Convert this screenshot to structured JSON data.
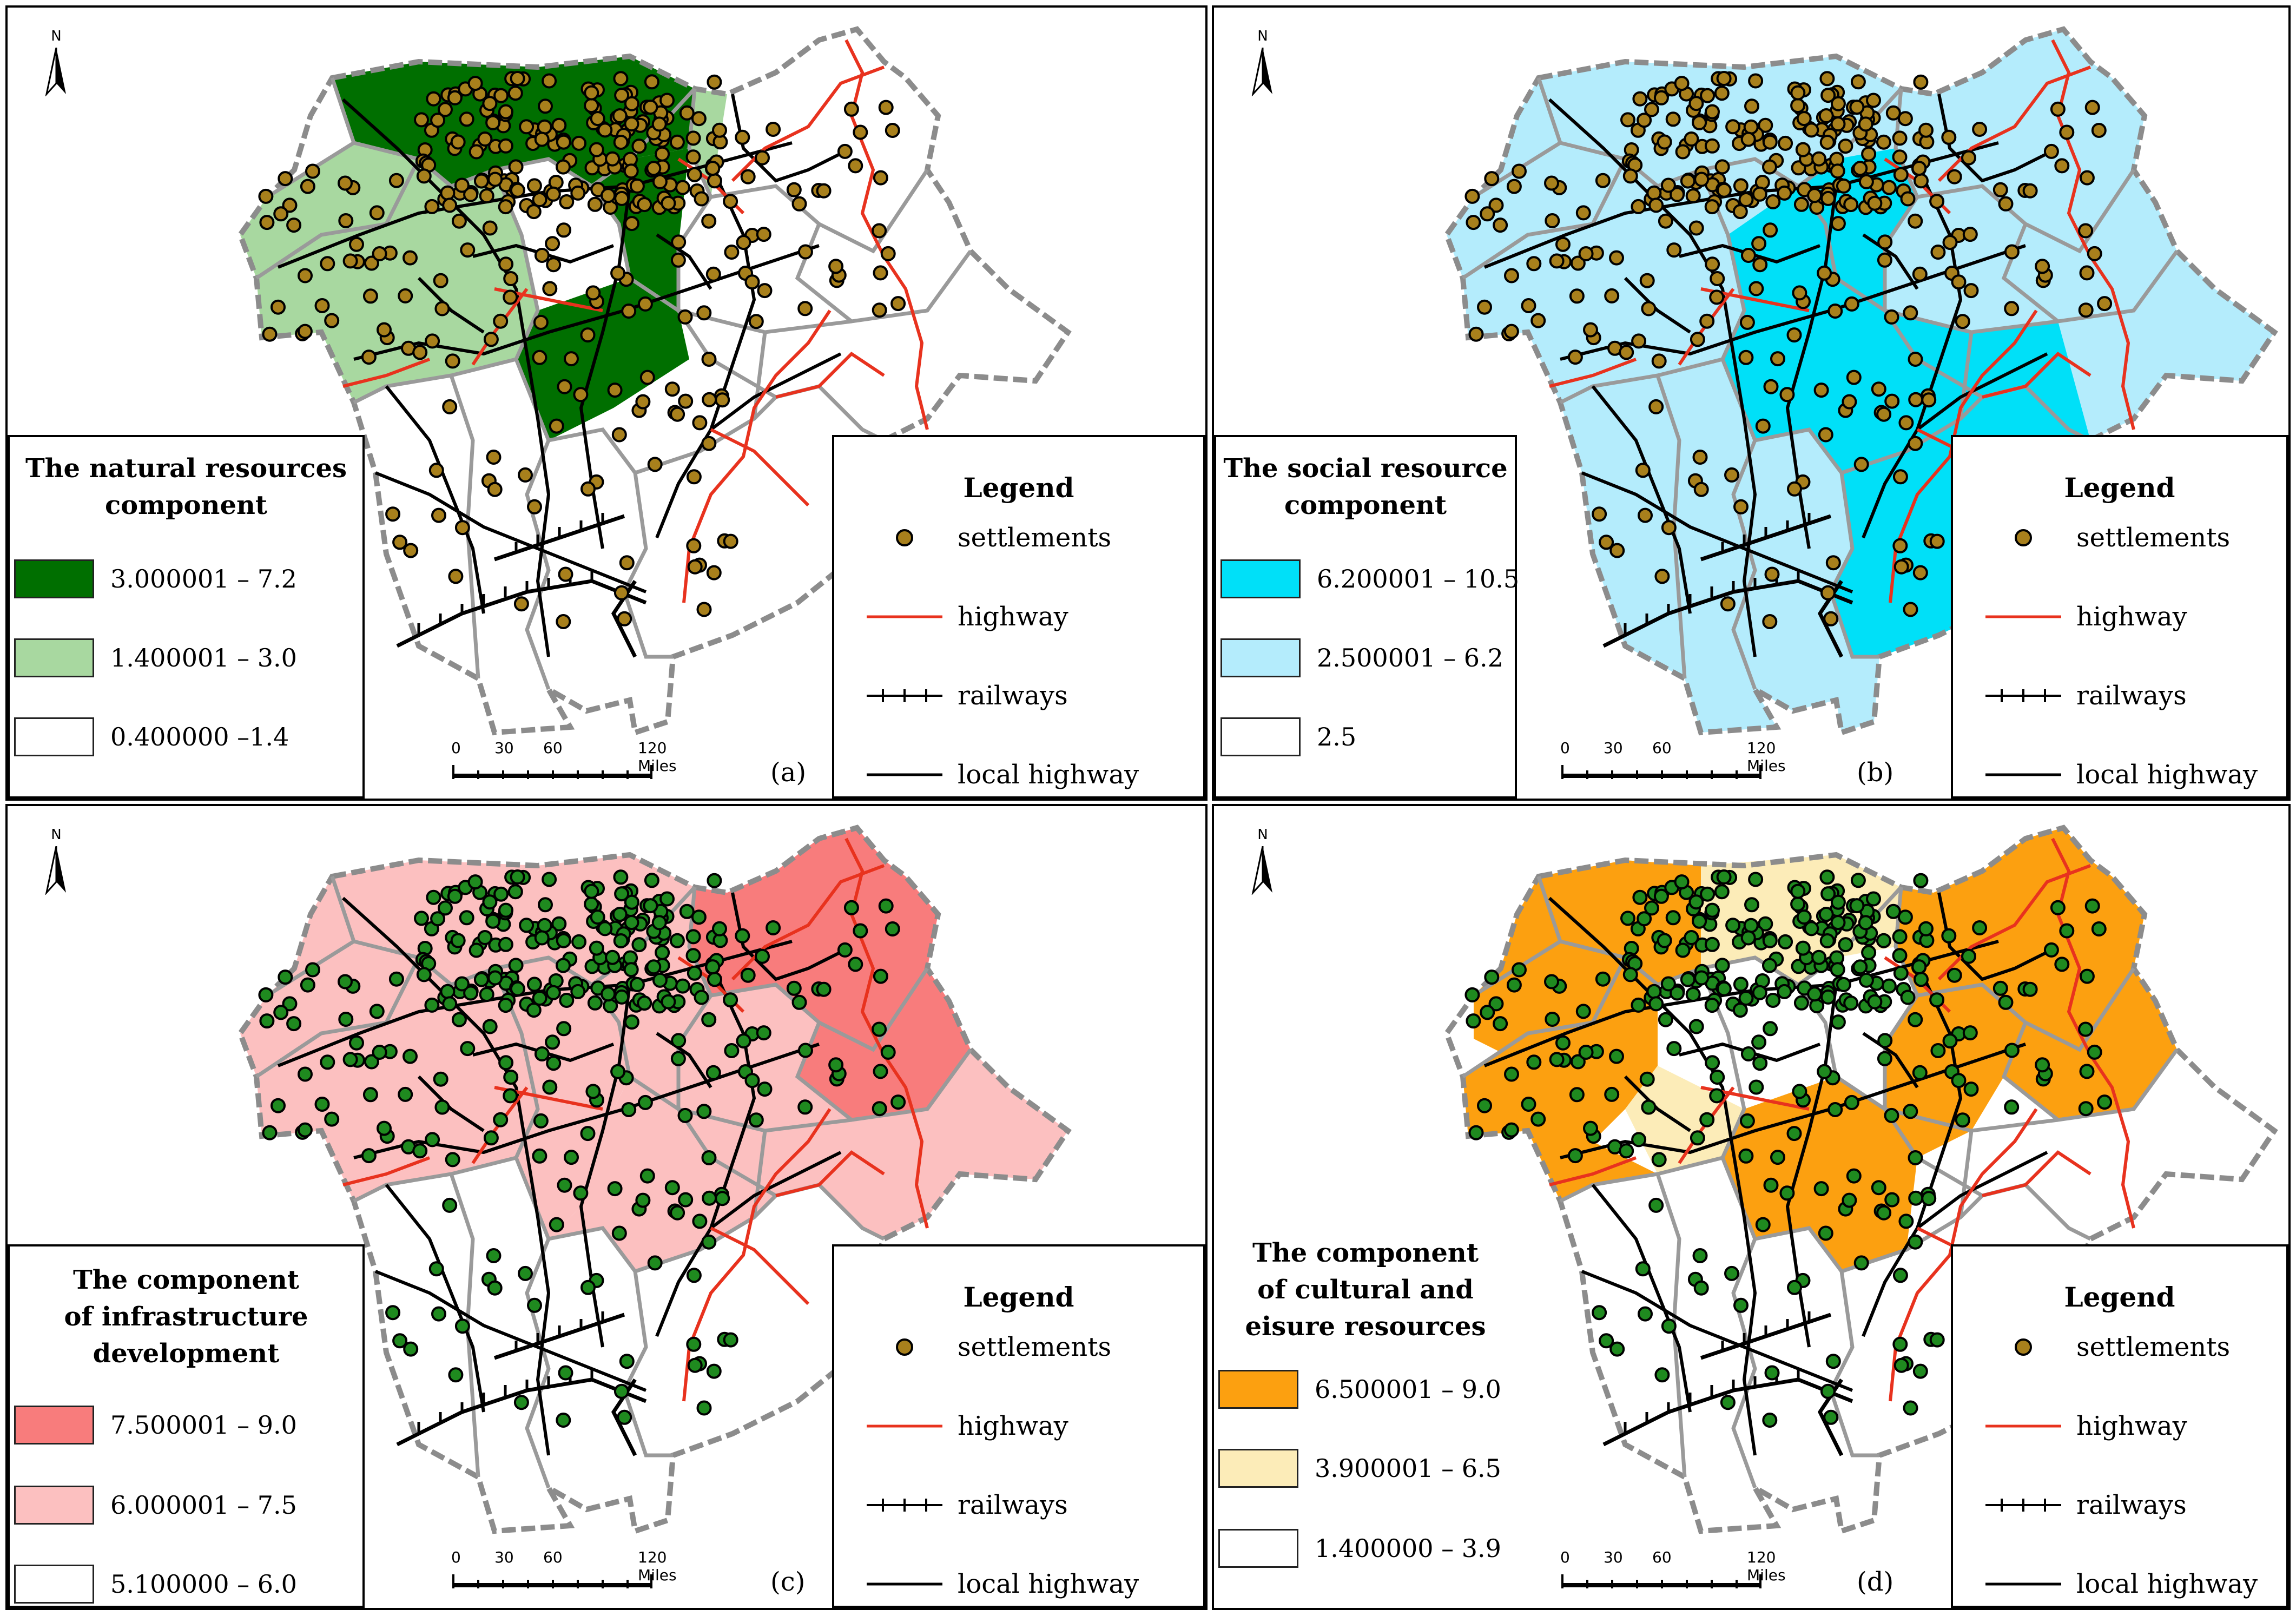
{
  "north_label": "N",
  "scale": {
    "ticks": [
      "0",
      "30",
      "60",
      "120 Miles"
    ]
  },
  "legend": {
    "title": "Legend",
    "items": [
      {
        "label": "settlements",
        "symbol": "settlement-dot"
      },
      {
        "label": "highway",
        "symbol": "red-line"
      },
      {
        "label": "railways",
        "symbol": "railway-line"
      },
      {
        "label": "local highway",
        "symbol": "black-line"
      }
    ]
  },
  "colors": {
    "highway": "#e8321e",
    "railway": "#000000",
    "local_highway": "#000000",
    "border": "#8c8c8c",
    "settlement_brown": "#a8801c",
    "settlement_green": "#1f8a1f"
  },
  "panels": [
    {
      "id": "a",
      "label": "(a)",
      "title_lines": [
        "The natural resources",
        "component"
      ],
      "settlement_color": "#a8801c",
      "classes": [
        {
          "range": "3.000001 – 7.2",
          "color": "#006f00"
        },
        {
          "range": "1.400001 – 3.0",
          "color": "#a8d8a0"
        },
        {
          "range": "0.400000 –1.4",
          "color": "#ffffff"
        }
      ]
    },
    {
      "id": "b",
      "label": "(b)",
      "title_lines": [
        "The social resource",
        "component"
      ],
      "settlement_color": "#a8801c",
      "classes": [
        {
          "range": "6.200001 – 10.5",
          "color": "#00e0f8"
        },
        {
          "range": "2.500001 – 6.2",
          "color": "#b4ecfc"
        },
        {
          "range": "2.5",
          "color": "#ffffff"
        }
      ]
    },
    {
      "id": "c",
      "label": "(c)",
      "title_lines": [
        "The component",
        "of infrastructure",
        "development"
      ],
      "settlement_color": "#1f8a1f",
      "classes": [
        {
          "range": "7.500001 – 9.0",
          "color": "#f87c7c"
        },
        {
          "range": "6.000001 – 7.5",
          "color": "#fcc0c0"
        },
        {
          "range": "5.100000 – 6.0",
          "color": "#ffffff"
        }
      ]
    },
    {
      "id": "d",
      "label": "(d)",
      "title_lines": [
        "The component",
        "of cultural and",
        "eisure resources"
      ],
      "settlement_color": "#1f8a1f",
      "classes": [
        {
          "range": "6.500001 – 9.0",
          "color": "#fca010"
        },
        {
          "range": "3.900001 – 6.5",
          "color": "#fcecb8"
        },
        {
          "range": "1.400000 – 3.9",
          "color": "#ffffff"
        }
      ]
    }
  ]
}
